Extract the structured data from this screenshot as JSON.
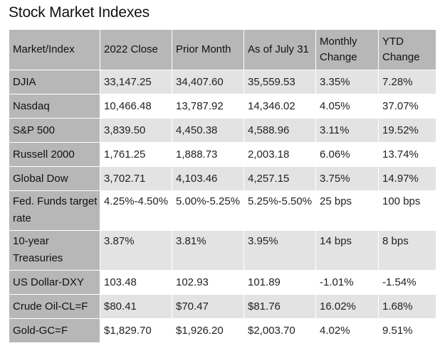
{
  "title": "Stock Market Indexes",
  "table": {
    "headers": [
      "Market/Index",
      "2022 Close",
      "Prior Month",
      "As of July 31",
      "Monthly Change",
      "YTD Change"
    ],
    "rows": [
      [
        "DJIA",
        "33,147.25",
        "34,407.60",
        "35,559.53",
        "3.35%",
        "7.28%"
      ],
      [
        "Nasdaq",
        "10,466.48",
        "13,787.92",
        "14,346.02",
        "4.05%",
        "37.07%"
      ],
      [
        "S&P 500",
        "3,839.50",
        "4,450.38",
        "4,588.96",
        "3.11%",
        "19.52%"
      ],
      [
        "Russell 2000",
        "1,761.25",
        "1,888.73",
        "2,003.18",
        "6.06%",
        "13.74%"
      ],
      [
        "Global Dow",
        "3,702.71",
        "4,103.46",
        "4,257.15",
        "3.75%",
        "14.97%"
      ],
      [
        "Fed. Funds target rate",
        "4.25%-4.50%",
        "5.00%-5.25%",
        "5.25%-5.50%",
        "25 bps",
        "100 bps"
      ],
      [
        "10-year Treasuries",
        "3.87%",
        "3.81%",
        "3.95%",
        "14 bps",
        "8 bps"
      ],
      [
        "US Dollar-DXY",
        "103.48",
        "102.93",
        "101.89",
        "-1.01%",
        "-1.54%"
      ],
      [
        "Crude Oil-CL=F",
        "$80.41",
        "$70.47",
        "$81.76",
        "16.02%",
        "1.68%"
      ],
      [
        "Gold-GC=F",
        "$1,829.70",
        "$1,926.20",
        "$2,003.70",
        "4.02%",
        "9.51%"
      ]
    ]
  },
  "colors": {
    "header_bg": "#b7b7b7",
    "shaded_row": "#e3e3e3",
    "plain_row": "#ffffff"
  }
}
